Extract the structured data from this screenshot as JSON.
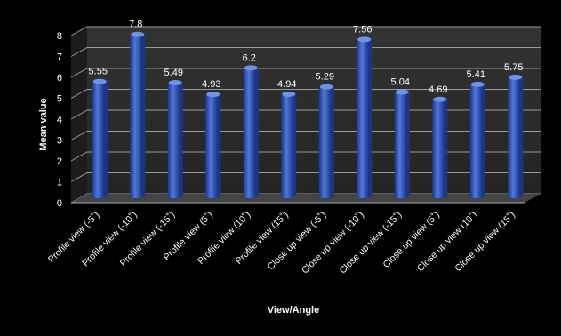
{
  "chart_data": {
    "type": "bar",
    "title": "",
    "xlabel": "View/Angle",
    "ylabel": "Mean value",
    "ylim": [
      0,
      8
    ],
    "yticks": [
      "0",
      "1",
      "2",
      "3",
      "4",
      "5",
      "6",
      "7",
      "8"
    ],
    "grid": true,
    "legend": "none",
    "categories": [
      "Profile view (-5˚)",
      "Profile view (-10˚)",
      "Profile view (-15˚)",
      "Profile view (5˚)",
      "Profile view (10˚)",
      "Profile view (15˚)",
      "Close up view (-5˚)",
      "Close up view (-10˚)",
      "Close up view (-15˚)",
      "Close up view (5˚)",
      "Close up view (10˚)",
      "Close up view (15˚)"
    ],
    "values": [
      5.55,
      7.8,
      5.49,
      4.93,
      6.2,
      4.94,
      5.29,
      7.56,
      5.04,
      4.69,
      5.41,
      5.75
    ],
    "data_labels": [
      "5.55",
      "7.8",
      "5.49",
      "4.93",
      "6.2",
      "4.94",
      "5.29",
      "7.56",
      "5.04",
      "4.69",
      "5.41",
      "5.75"
    ],
    "colors": {
      "background": "#000000",
      "bar": "#3f64c8",
      "bar_dark": "#1c3687",
      "bar_light": "#6f93ea",
      "wall": "#2b2b2b",
      "floor": "#3a3a3a",
      "grid": "#9a9a9a",
      "text": "#ffffff"
    }
  }
}
